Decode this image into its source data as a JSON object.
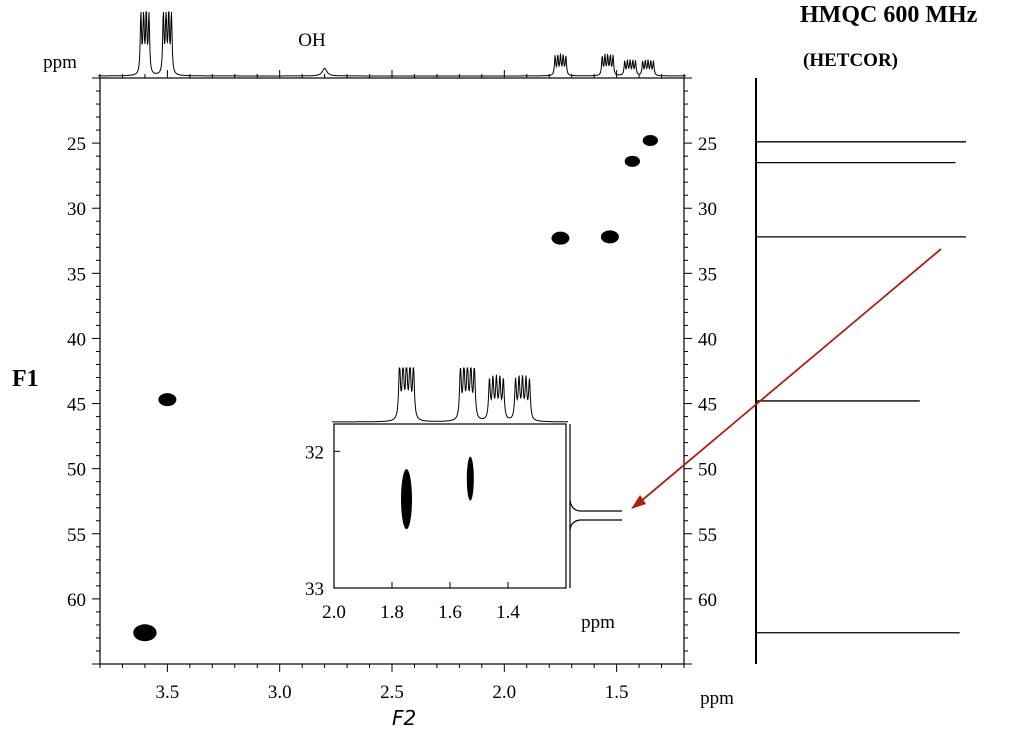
{
  "header": {
    "title": "HMQC 600 MHz",
    "subtitle": "(HETCOR)"
  },
  "axes": {
    "f1_label": "F1",
    "f2_label": "F2",
    "unit": "ppm"
  },
  "chart_data": [
    {
      "type": "scatter",
      "name": "main-2d-spectrum",
      "xlabel": "F2",
      "ylabel": "F1",
      "x_unit": "ppm",
      "x_reversed": true,
      "y_reversed": true,
      "xlim": [
        3.8,
        1.2
      ],
      "ylim": [
        20,
        65
      ],
      "x_ticks": [
        3.5,
        3.0,
        2.5,
        2.0,
        1.5
      ],
      "y_ticks": [
        25,
        30,
        35,
        40,
        45,
        50,
        55,
        60
      ],
      "cross_peaks": [
        {
          "x": 3.6,
          "y": 62.6
        },
        {
          "x": 3.5,
          "y": 44.7
        },
        {
          "x": 1.75,
          "y": 32.3
        },
        {
          "x": 1.53,
          "y": 32.2
        },
        {
          "x": 1.43,
          "y": 26.4
        },
        {
          "x": 1.35,
          "y": 24.8
        }
      ],
      "top_projection_label": "OH",
      "top_multiplets": [
        {
          "ppm": 3.6,
          "lines": 4,
          "height": 0.98
        },
        {
          "ppm": 3.5,
          "lines": 4,
          "height": 1.0
        },
        {
          "ppm": 2.8,
          "lines": 1,
          "height": 0.12
        },
        {
          "ppm": 1.75,
          "lines": 5,
          "height": 0.3
        },
        {
          "ppm": 1.54,
          "lines": 5,
          "height": 0.3
        },
        {
          "ppm": 1.44,
          "lines": 5,
          "height": 0.22
        },
        {
          "ppm": 1.36,
          "lines": 5,
          "height": 0.22
        }
      ],
      "carbon_projection": [
        {
          "ppm": 24.9,
          "height": 1.0
        },
        {
          "ppm": 26.5,
          "height": 0.95
        },
        {
          "ppm": 32.2,
          "height": 1.0
        },
        {
          "ppm": 44.8,
          "height": 0.78
        },
        {
          "ppm": 62.6,
          "height": 0.97
        }
      ],
      "grid": false
    },
    {
      "type": "scatter",
      "name": "inset-expansion",
      "x_unit": "ppm",
      "x_reversed": true,
      "xlim": [
        2.0,
        1.2
      ],
      "ylim": [
        31.8,
        33.0
      ],
      "x_ticks": [
        2.0,
        1.8,
        1.6,
        1.4
      ],
      "y_ticks": [
        32,
        33
      ],
      "cross_peaks": [
        {
          "x": 1.75,
          "y": 32.35
        },
        {
          "x": 1.53,
          "y": 32.2
        }
      ],
      "top_multiplets": [
        {
          "ppm": 1.75,
          "lines": 5,
          "height": 1.0
        },
        {
          "ppm": 1.54,
          "lines": 5,
          "height": 0.95
        },
        {
          "ppm": 1.44,
          "lines": 5,
          "height": 0.72
        },
        {
          "ppm": 1.35,
          "lines": 5,
          "height": 0.72
        }
      ],
      "carbon_projection": [
        {
          "ppm": 32.26,
          "height": 1.0
        },
        {
          "ppm": 32.34,
          "height": 1.0
        }
      ]
    }
  ],
  "colors": {
    "ink": "#000000",
    "arrow": "#b01e12"
  }
}
